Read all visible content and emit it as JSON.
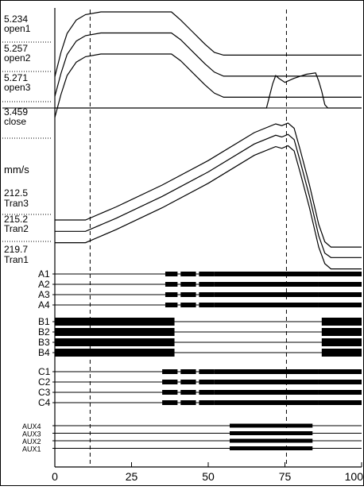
{
  "chart_data": {
    "type": "line",
    "title": "",
    "x_axis": {
      "range": [
        0,
        100
      ],
      "ticks": [
        0,
        25,
        50,
        75,
        100
      ],
      "tick_labels": [
        "0",
        "25",
        "50",
        "75",
        "100"
      ],
      "cursor_lines": [
        11.5,
        75.5
      ]
    },
    "y_units_label": "mm/s",
    "contact_panel": {
      "channels": [
        {
          "value": "5.234",
          "name": "open1"
        },
        {
          "value": "5.257",
          "name": "open2"
        },
        {
          "value": "5.271",
          "name": "open3"
        },
        {
          "value": "3.459",
          "name": "close"
        }
      ],
      "series": [
        {
          "name": "open1",
          "points": [
            [
              0,
              4
            ],
            [
              2,
              40
            ],
            [
              4,
              68
            ],
            [
              7,
              88
            ],
            [
              10,
              96
            ],
            [
              15,
              100
            ],
            [
              25,
              100
            ],
            [
              38,
              100
            ],
            [
              41,
              88
            ],
            [
              45,
              70
            ],
            [
              49,
              52
            ],
            [
              52,
              40
            ],
            [
              55,
              36
            ],
            [
              100,
              36
            ]
          ]
        },
        {
          "name": "open2",
          "points": [
            [
              0,
              -4
            ],
            [
              2,
              30
            ],
            [
              4,
              58
            ],
            [
              7,
              78
            ],
            [
              10,
              86
            ],
            [
              15,
              90
            ],
            [
              25,
              90
            ],
            [
              38,
              90
            ],
            [
              41,
              80
            ],
            [
              45,
              62
            ],
            [
              49,
              44
            ],
            [
              52,
              32
            ],
            [
              55,
              26
            ],
            [
              100,
              26
            ]
          ]
        },
        {
          "name": "open3",
          "points": [
            [
              0,
              -14
            ],
            [
              2,
              20
            ],
            [
              4,
              48
            ],
            [
              7,
              68
            ],
            [
              10,
              76
            ],
            [
              15,
              80
            ],
            [
              25,
              80
            ],
            [
              38,
              80
            ],
            [
              41,
              70
            ],
            [
              45,
              52
            ],
            [
              49,
              34
            ],
            [
              52,
              22
            ],
            [
              55,
              16
            ],
            [
              100,
              16
            ]
          ]
        },
        {
          "name": "close",
          "points": [
            [
              0,
              0
            ],
            [
              69,
              0
            ],
            [
              71,
              36
            ],
            [
              72,
              48
            ],
            [
              73,
              44
            ],
            [
              75,
              38
            ],
            [
              78,
              44
            ],
            [
              82,
              50
            ],
            [
              85,
              52
            ],
            [
              86,
              40
            ],
            [
              87,
              25
            ],
            [
              88,
              5
            ],
            [
              89,
              0
            ],
            [
              100,
              0
            ]
          ]
        }
      ]
    },
    "speed_panel": {
      "series": [
        {
          "name": "Tran3",
          "value": "212.5",
          "points": [
            [
              0,
              50
            ],
            [
              10,
              50
            ],
            [
              20,
              65
            ],
            [
              35,
              90
            ],
            [
              50,
              118
            ],
            [
              65,
              150
            ],
            [
              72,
              160
            ],
            [
              74,
              158
            ],
            [
              76,
              161
            ],
            [
              78,
              155
            ],
            [
              80,
              130
            ],
            [
              83,
              90
            ],
            [
              86,
              45
            ],
            [
              88,
              25
            ],
            [
              90,
              19
            ],
            [
              100,
              19
            ]
          ]
        },
        {
          "name": "Tran2",
          "value": "215.2",
          "points": [
            [
              0,
              37
            ],
            [
              10,
              37
            ],
            [
              20,
              52
            ],
            [
              35,
              77
            ],
            [
              50,
              105
            ],
            [
              65,
              137
            ],
            [
              72,
              147
            ],
            [
              74,
              145
            ],
            [
              76,
              148
            ],
            [
              78,
              142
            ],
            [
              80,
              117
            ],
            [
              83,
              77
            ],
            [
              86,
              32
            ],
            [
              88,
              12
            ],
            [
              90,
              7
            ],
            [
              100,
              7
            ]
          ]
        },
        {
          "name": "Tran1",
          "value": "219.7",
          "points": [
            [
              0,
              24
            ],
            [
              10,
              24
            ],
            [
              20,
              39
            ],
            [
              35,
              64
            ],
            [
              50,
              92
            ],
            [
              65,
              124
            ],
            [
              72,
              134
            ],
            [
              74,
              132
            ],
            [
              76,
              135
            ],
            [
              78,
              129
            ],
            [
              80,
              104
            ],
            [
              83,
              64
            ],
            [
              86,
              19
            ],
            [
              88,
              0
            ],
            [
              90,
              -6
            ],
            [
              100,
              -6
            ]
          ]
        }
      ]
    },
    "digital_channels": {
      "groups": [
        {
          "group": "A",
          "labels": [
            "A1",
            "A2",
            "A3",
            "A4"
          ],
          "segments": [
            [
              36,
              40
            ],
            [
              41,
              46
            ],
            [
              47,
              52
            ],
            [
              52,
              86
            ],
            [
              86,
              100
            ]
          ]
        },
        {
          "group": "B",
          "labels": [
            "B1",
            "B2",
            "B3",
            "B4"
          ],
          "segments": [
            [
              0,
              39
            ],
            [
              87,
              100
            ]
          ]
        },
        {
          "group": "C",
          "labels": [
            "C1",
            "C2",
            "C3",
            "C4"
          ],
          "segments": [
            [
              35,
              40
            ],
            [
              41,
              46
            ],
            [
              47,
              52
            ],
            [
              52,
              86
            ],
            [
              86,
              100
            ]
          ]
        },
        {
          "group": "AUX",
          "labels": [
            "AUX4",
            "AUX3",
            "AUX2",
            "AUX1"
          ],
          "segments": [
            [
              57,
              84
            ]
          ]
        }
      ]
    }
  }
}
